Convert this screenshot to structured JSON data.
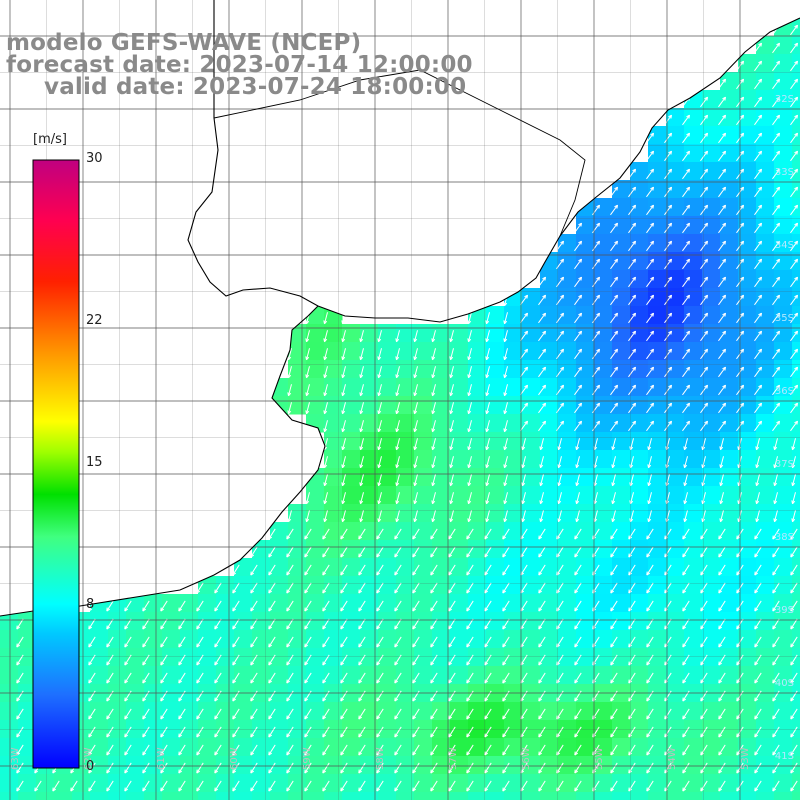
{
  "title": {
    "model": "modelo GEFS-WAVE (NCEP)",
    "forecast": "forecast date: 2023-07-14 12:00:00",
    "valid": "valid date: 2023-07-24 18:00:00"
  },
  "colorbar": {
    "unit": "[m/s]",
    "ticks": [
      {
        "label": "30",
        "value": 30
      },
      {
        "label": "22",
        "value": 22
      },
      {
        "label": "15",
        "value": 15
      },
      {
        "label": "8",
        "value": 8
      },
      {
        "label": "0",
        "value": 0
      }
    ],
    "colors": [
      "#0000ff",
      "#1e6fff",
      "#00b4ff",
      "#00ffff",
      "#40ff80",
      "#00e000",
      "#7fff00",
      "#ffff00",
      "#ffa500",
      "#ff4000",
      "#ff0000",
      "#ff0060",
      "#c00080"
    ]
  },
  "map": {
    "lat_labels": [
      "32S",
      "33S",
      "34S",
      "35S",
      "36S",
      "37S",
      "38S",
      "39S",
      "40S",
      "41S"
    ],
    "lon_labels": [
      "63W",
      "62W",
      "61W",
      "60W",
      "59W",
      "58W",
      "57W",
      "56W",
      "55W",
      "54W",
      "53W",
      "52W",
      "51W"
    ],
    "land_color": "#ffffff",
    "coast_color": "#000000",
    "grid_color": "#555555",
    "arrow_color": "#ffffff"
  }
}
